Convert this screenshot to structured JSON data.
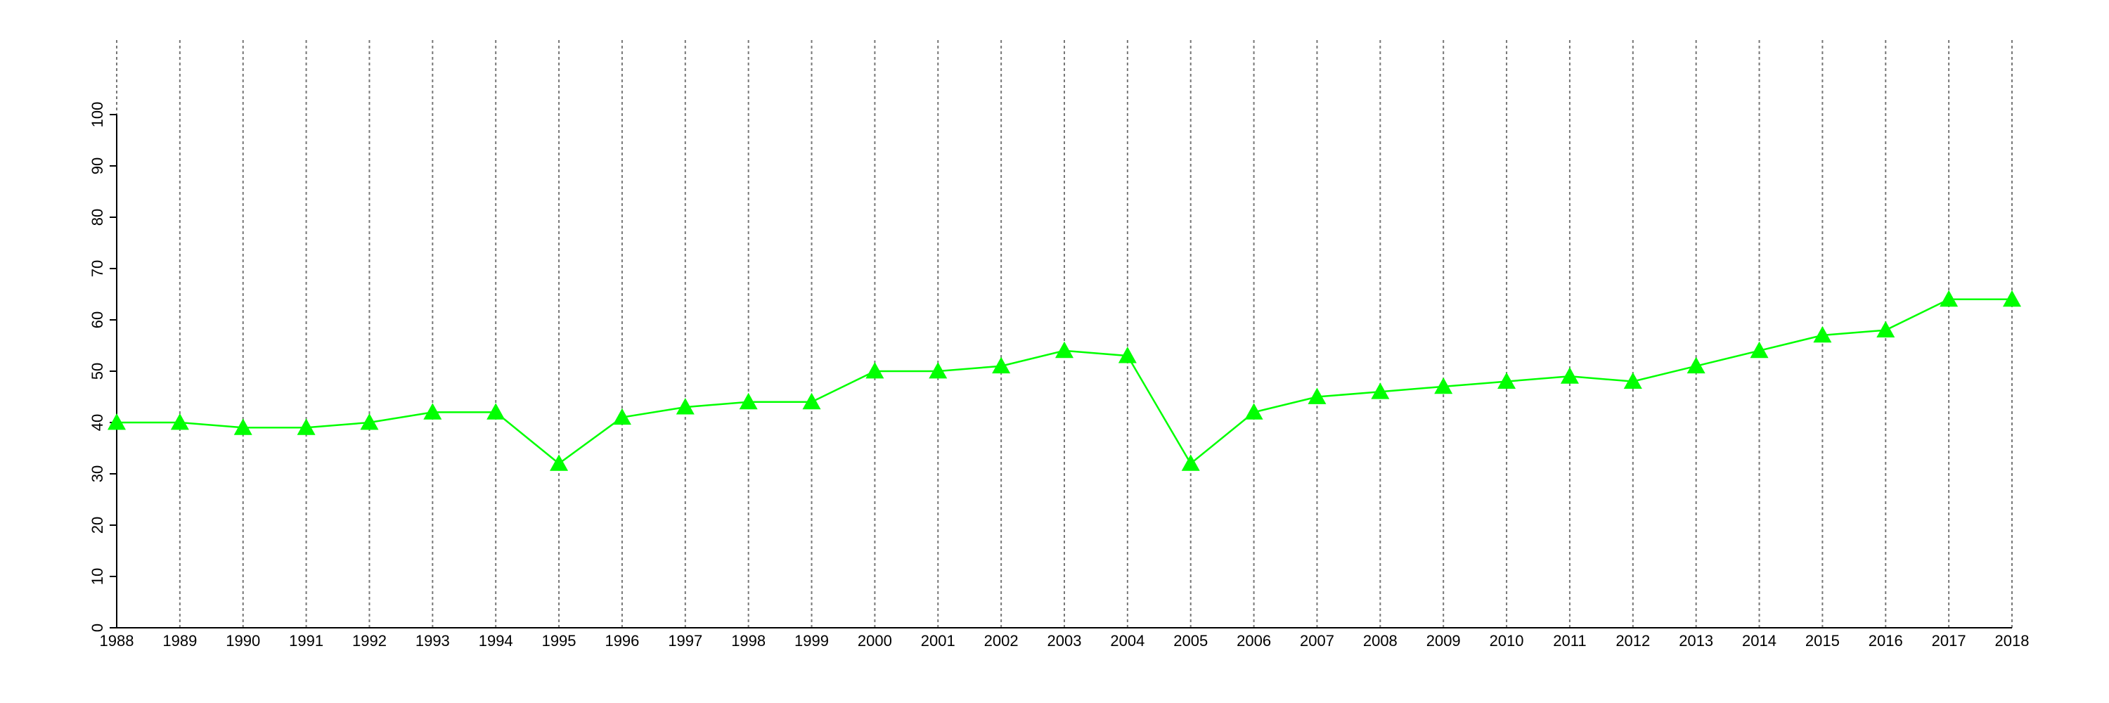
{
  "chart_data": {
    "type": "line",
    "x": [
      1988,
      1989,
      1990,
      1991,
      1992,
      1993,
      1994,
      1995,
      1996,
      1997,
      1998,
      1999,
      2000,
      2001,
      2002,
      2003,
      2004,
      2005,
      2006,
      2007,
      2008,
      2009,
      2010,
      2011,
      2012,
      2013,
      2014,
      2015,
      2016,
      2017,
      2018
    ],
    "series": [
      {
        "color": "#00ff00",
        "marker": "triangle",
        "values": [
          40,
          40,
          39,
          39,
          40,
          42,
          42,
          32,
          41,
          43,
          44,
          44,
          50,
          50,
          51,
          54,
          53,
          32,
          42,
          45,
          46,
          47,
          48,
          49,
          48,
          51,
          54,
          57,
          58,
          64,
          64
        ]
      }
    ],
    "xlim": [
      1988,
      2018
    ],
    "xticks": [
      1988,
      1989,
      1990,
      1991,
      1992,
      1993,
      1994,
      1995,
      1996,
      1997,
      1998,
      1999,
      2000,
      2001,
      2002,
      2003,
      2004,
      2005,
      2006,
      2007,
      2008,
      2009,
      2010,
      2011,
      2012,
      2013,
      2014,
      2015,
      2016,
      2017,
      2018
    ],
    "ylim": [
      0,
      100
    ],
    "yticks": [
      0,
      10,
      20,
      30,
      40,
      50,
      60,
      70,
      80,
      90,
      100
    ],
    "grid": "x"
  }
}
